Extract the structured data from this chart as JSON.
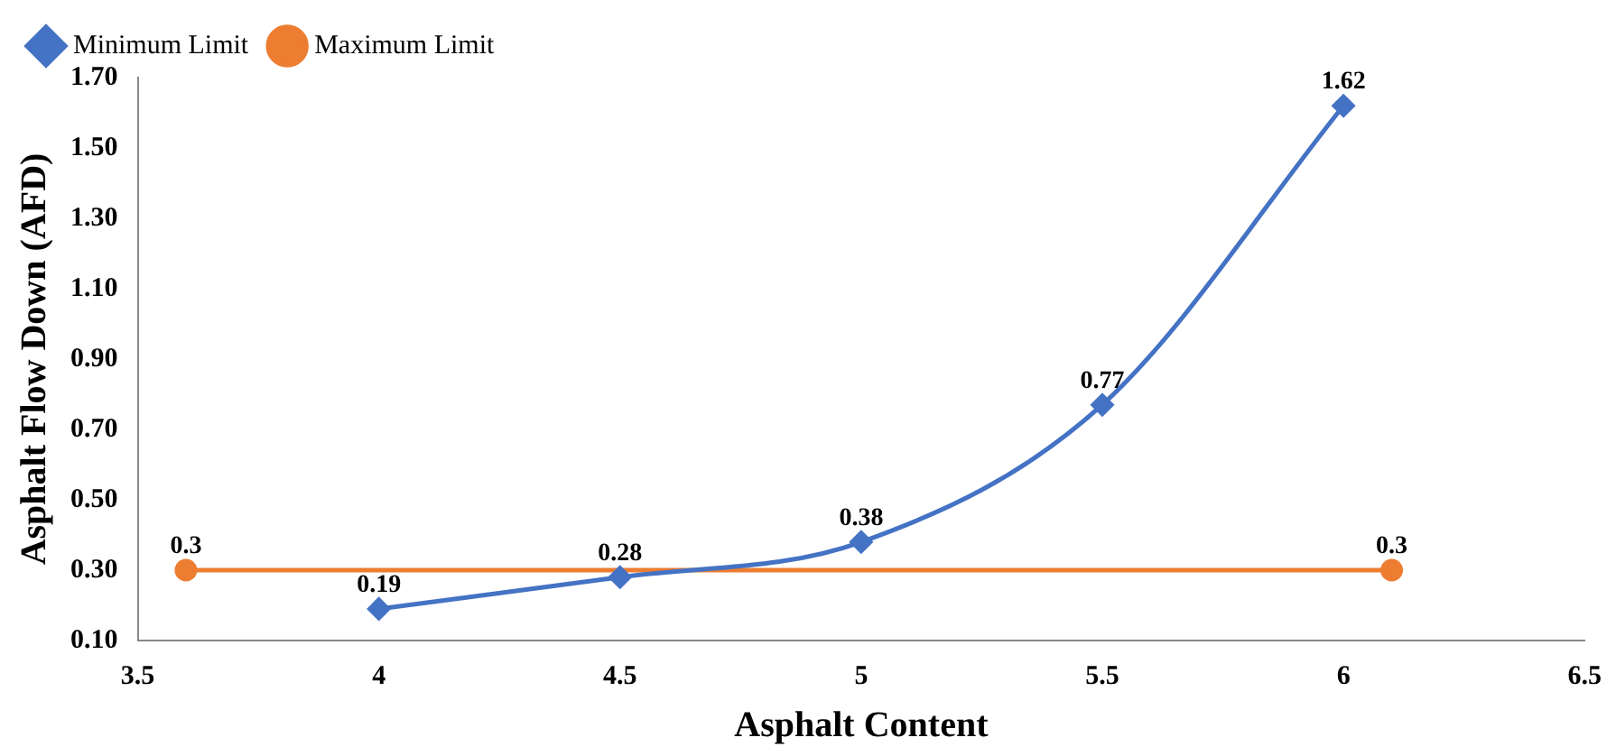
{
  "chart_data": {
    "type": "line",
    "xlabel": "Asphalt Content",
    "ylabel": "Asphalt Flow Down (AFD)",
    "series": [
      {
        "name": "Minimum Limit",
        "color": "#4472c4",
        "marker": "diamond",
        "x": [
          4,
          4.5,
          5,
          5.5,
          6
        ],
        "values": [
          0.19,
          0.28,
          0.38,
          0.77,
          1.62
        ]
      },
      {
        "name": "Maximum Limit",
        "color": "#ed7d31",
        "marker": "circle",
        "x": [
          3.6,
          6.1
        ],
        "values": [
          0.3,
          0.3
        ]
      }
    ],
    "xlim": [
      3.5,
      6.5
    ],
    "xticks": [
      3.5,
      4,
      4.5,
      5,
      5.5,
      6,
      6.5
    ],
    "ylim": [
      0.1,
      1.7
    ],
    "yticks": [
      {
        "value": 0.1,
        "label": "0.10"
      },
      {
        "value": 0.3,
        "label": "0.30"
      },
      {
        "value": 0.5,
        "label": "0.50"
      },
      {
        "value": 0.7,
        "label": "0.70"
      },
      {
        "value": 0.9,
        "label": "0.90"
      },
      {
        "value": 1.1,
        "label": "1.10"
      },
      {
        "value": 1.3,
        "label": "1.30"
      },
      {
        "value": 1.5,
        "label": "1.50"
      },
      {
        "value": 1.7,
        "label": "1.70"
      }
    ],
    "data_labels": true,
    "grid": false,
    "legend": "top left",
    "line_style": "solid"
  }
}
